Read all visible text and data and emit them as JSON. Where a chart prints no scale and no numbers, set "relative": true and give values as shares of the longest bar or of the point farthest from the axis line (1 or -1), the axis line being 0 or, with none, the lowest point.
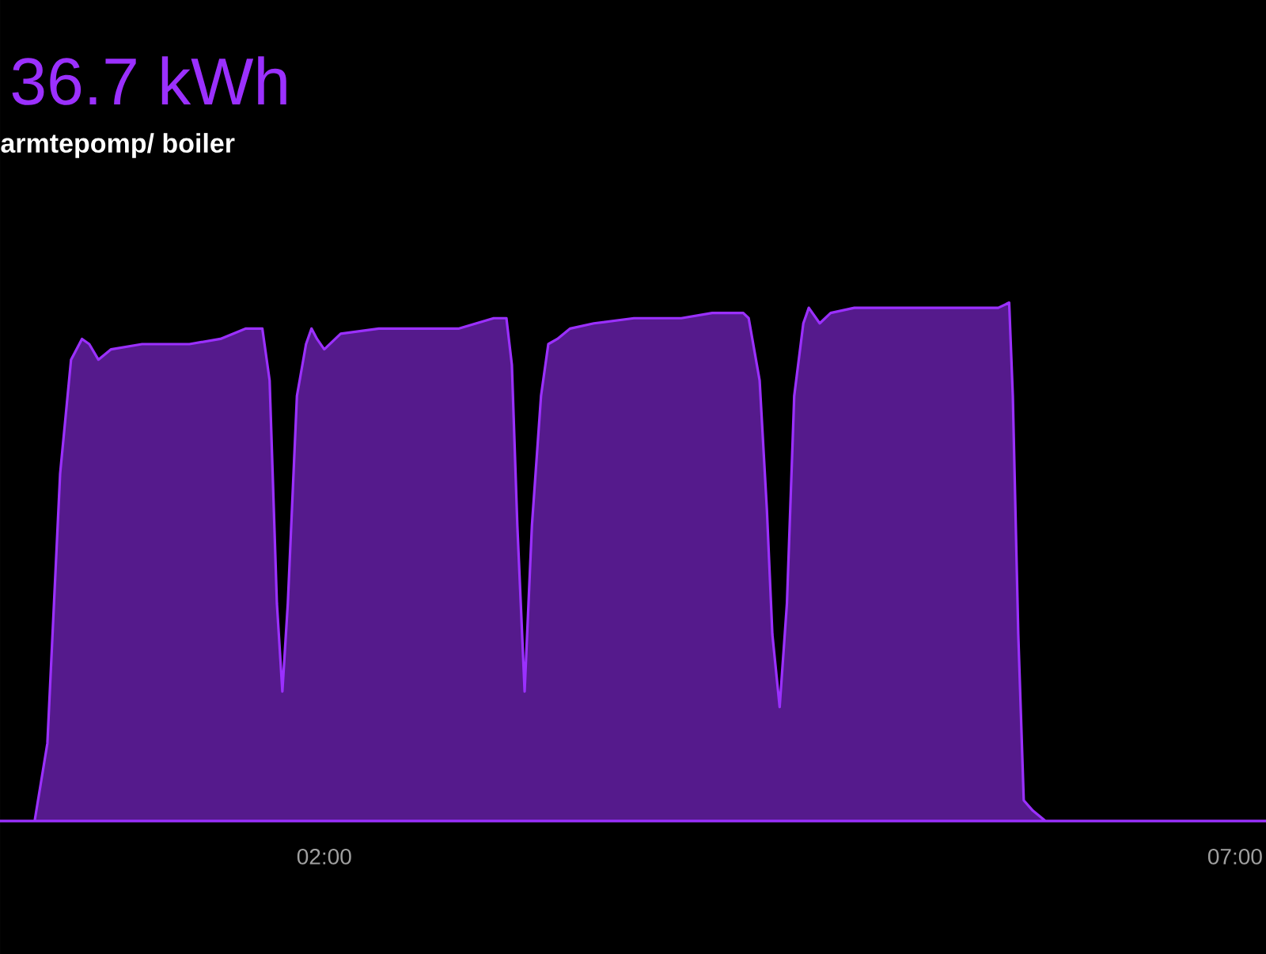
{
  "chart_data": {
    "type": "area",
    "title": "36.7 kWh",
    "subtitle": "armtepomp/ boiler",
    "relative": true,
    "color": "#9b30ff",
    "xlim": [
      0.22,
      7.17
    ],
    "xticks": [
      {
        "value": 2,
        "label": "02:00"
      },
      {
        "value": 7,
        "label": "07:00"
      }
    ],
    "x": [
      0.22,
      0.41,
      0.48,
      0.55,
      0.61,
      0.67,
      0.71,
      0.76,
      0.83,
      1.0,
      1.26,
      1.43,
      1.57,
      1.66,
      1.7,
      1.74,
      1.77,
      1.8,
      1.85,
      1.9,
      1.93,
      1.96,
      2.0,
      2.09,
      2.3,
      2.48,
      2.74,
      2.93,
      3.0,
      3.03,
      3.06,
      3.1,
      3.14,
      3.19,
      3.23,
      3.28,
      3.35,
      3.48,
      3.7,
      3.96,
      4.13,
      4.3,
      4.33,
      4.39,
      4.43,
      4.46,
      4.5,
      4.54,
      4.58,
      4.63,
      4.66,
      4.72,
      4.78,
      4.91,
      5.17,
      5.43,
      5.7,
      5.76,
      5.78,
      5.81,
      5.84,
      5.89,
      5.96,
      7.17
    ],
    "values": [
      0,
      0,
      0.15,
      0.67,
      0.89,
      0.93,
      0.92,
      0.89,
      0.91,
      0.92,
      0.92,
      0.93,
      0.95,
      0.95,
      0.85,
      0.42,
      0.25,
      0.42,
      0.82,
      0.92,
      0.95,
      0.93,
      0.91,
      0.94,
      0.95,
      0.95,
      0.95,
      0.97,
      0.97,
      0.88,
      0.57,
      0.25,
      0.57,
      0.82,
      0.92,
      0.93,
      0.95,
      0.96,
      0.97,
      0.97,
      0.98,
      0.98,
      0.97,
      0.85,
      0.6,
      0.36,
      0.22,
      0.42,
      0.82,
      0.96,
      0.99,
      0.96,
      0.98,
      0.99,
      0.99,
      0.99,
      0.99,
      1.0,
      0.82,
      0.36,
      0.04,
      0.02,
      0,
      0
    ]
  }
}
